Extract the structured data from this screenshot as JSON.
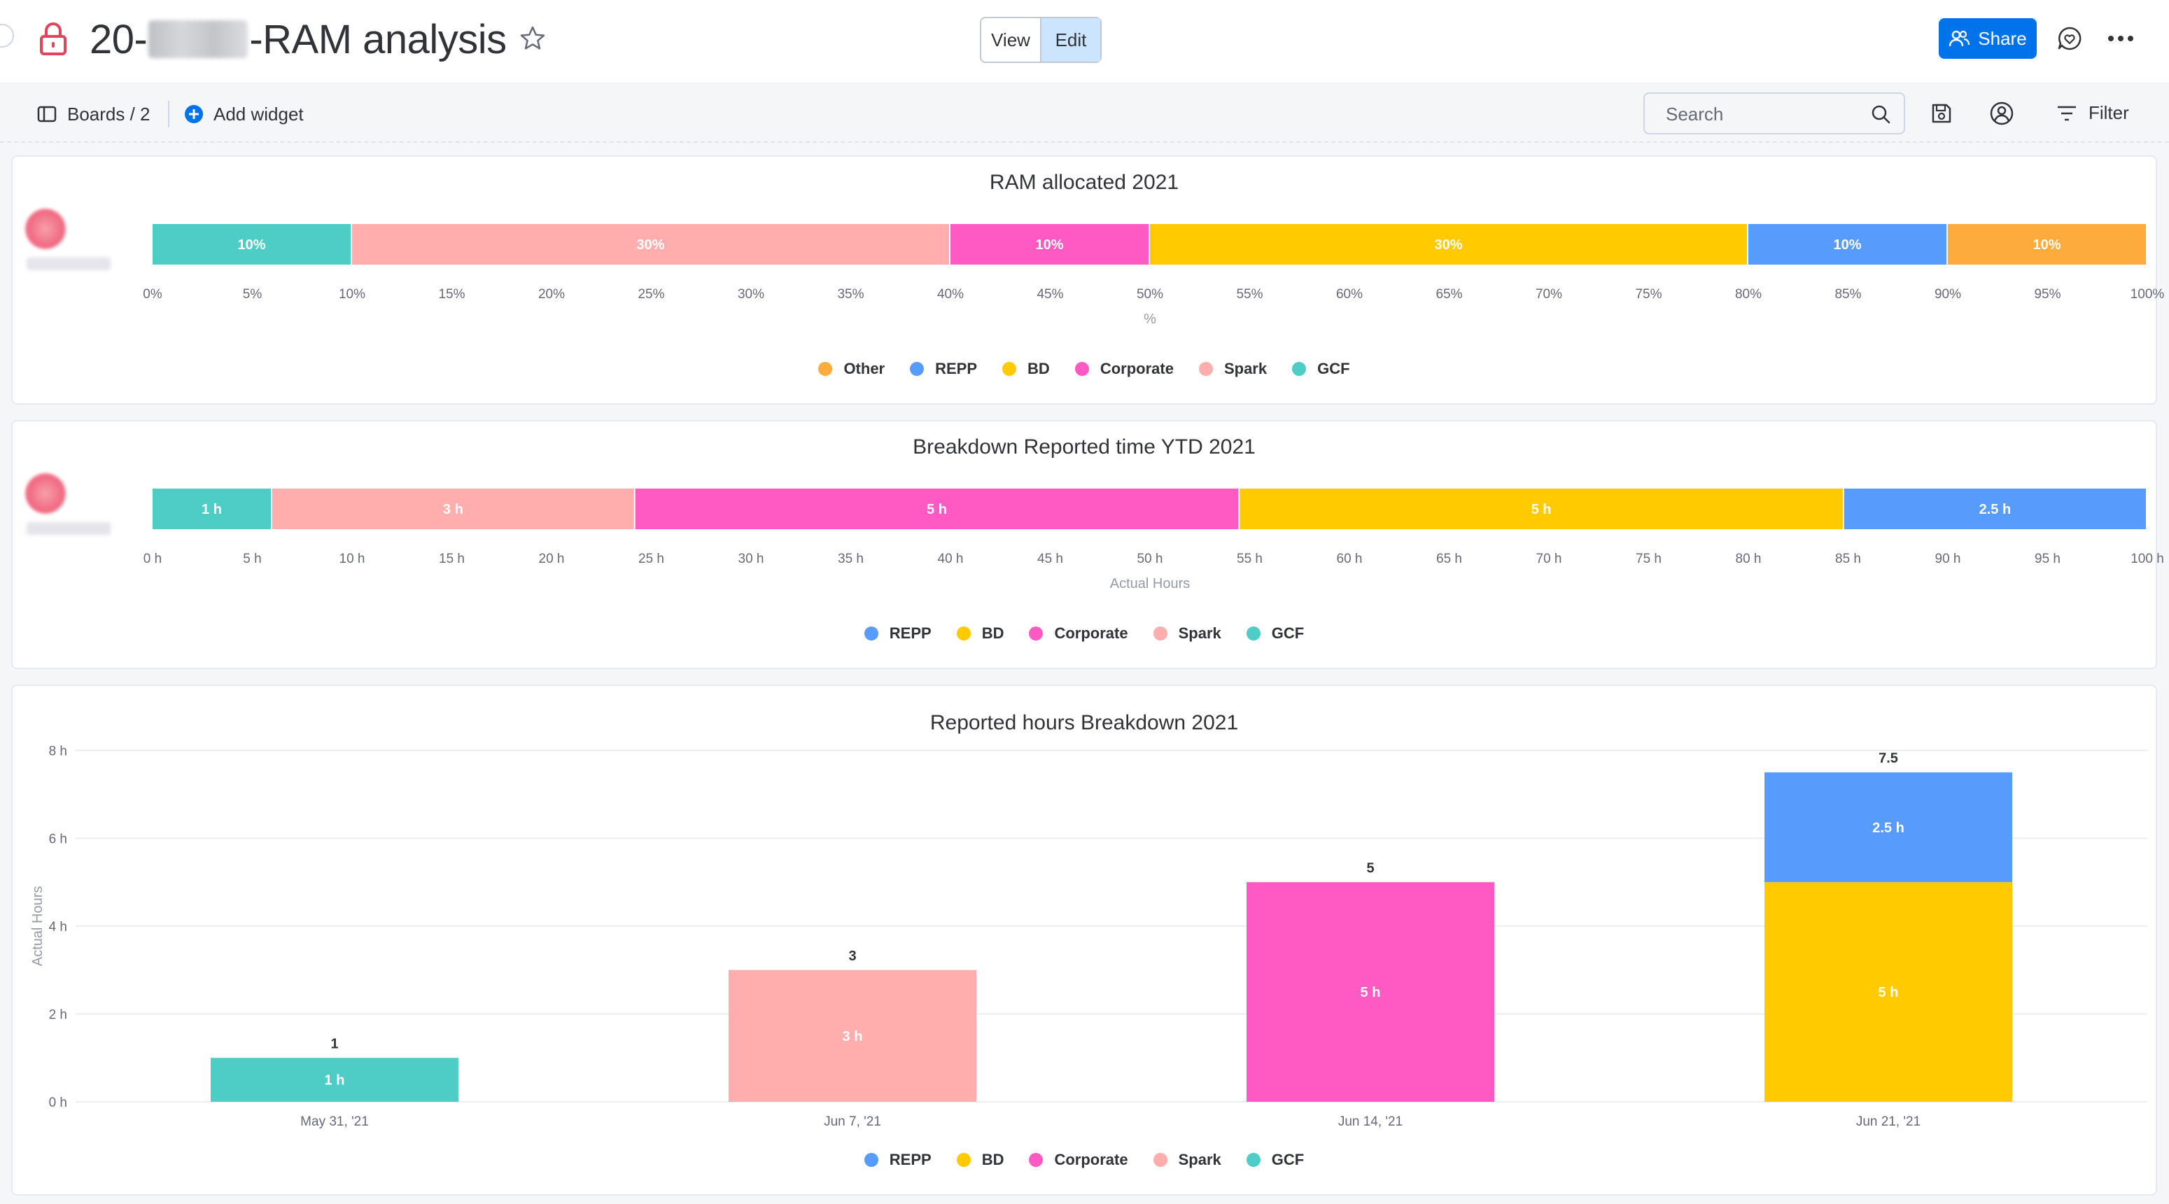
{
  "header": {
    "title_prefix": "20-",
    "title_suffix": "-RAM analysis",
    "view_label": "View",
    "edit_label": "Edit",
    "share_label": "Share"
  },
  "toolbar": {
    "boards_label": "Boards / 2",
    "add_widget_label": "Add widget",
    "search_placeholder": "Search",
    "filter_label": "Filter"
  },
  "colors": {
    "GCF": "#4eccc6",
    "Spark": "#ffadad",
    "Corporate": "#ff5ac4",
    "BD": "#ffcb00",
    "REPP": "#579bfc",
    "Other": "#fdab3d",
    "accent": "#0073ea",
    "lock": "#e2445c"
  },
  "widgets": {
    "ram": {
      "title": "RAM allocated 2021"
    },
    "ytd": {
      "title": "Breakdown Reported time YTD 2021"
    },
    "weekly": {
      "title": "Reported hours Breakdown 2021"
    }
  },
  "chart_data": [
    {
      "type": "bar",
      "orientation": "horizontal-stacked",
      "title": "RAM allocated 2021",
      "xlabel": "%",
      "xlim": [
        0,
        100
      ],
      "x_ticks": [
        "0%",
        "5%",
        "10%",
        "15%",
        "20%",
        "25%",
        "30%",
        "35%",
        "40%",
        "45%",
        "50%",
        "55%",
        "60%",
        "65%",
        "70%",
        "75%",
        "80%",
        "85%",
        "90%",
        "95%",
        "100%"
      ],
      "series": [
        {
          "name": "GCF",
          "values": [
            10
          ],
          "label": "10%"
        },
        {
          "name": "Spark",
          "values": [
            30
          ],
          "label": "30%"
        },
        {
          "name": "Corporate",
          "values": [
            10
          ],
          "label": "10%"
        },
        {
          "name": "BD",
          "values": [
            30
          ],
          "label": "30%"
        },
        {
          "name": "REPP",
          "values": [
            10
          ],
          "label": "10%"
        },
        {
          "name": "Other",
          "values": [
            10
          ],
          "label": "10%"
        }
      ],
      "legend": [
        "Other",
        "REPP",
        "BD",
        "Corporate",
        "Spark",
        "GCF"
      ],
      "legend_position": "bottom"
    },
    {
      "type": "bar",
      "orientation": "horizontal-stacked",
      "title": "Breakdown Reported time YTD 2021",
      "xlabel": "Actual Hours",
      "xlim": [
        0,
        100
      ],
      "x_ticks": [
        "0 h",
        "5 h",
        "10 h",
        "15 h",
        "20 h",
        "25 h",
        "30 h",
        "35 h",
        "40 h",
        "45 h",
        "50 h",
        "55 h",
        "60 h",
        "65 h",
        "70 h",
        "75 h",
        "80 h",
        "85 h",
        "90 h",
        "95 h",
        "100 h"
      ],
      "series": [
        {
          "name": "GCF",
          "values": [
            1
          ],
          "label": "1 h",
          "span": 6
        },
        {
          "name": "Spark",
          "values": [
            3
          ],
          "label": "3 h",
          "span": 18.2
        },
        {
          "name": "Corporate",
          "values": [
            5
          ],
          "label": "5 h",
          "span": 30.3
        },
        {
          "name": "BD",
          "values": [
            5
          ],
          "label": "5 h",
          "span": 30.3
        },
        {
          "name": "REPP",
          "values": [
            2.5
          ],
          "label": "2.5 h",
          "span": 15.2
        }
      ],
      "legend": [
        "REPP",
        "BD",
        "Corporate",
        "Spark",
        "GCF"
      ],
      "legend_position": "bottom"
    },
    {
      "type": "bar",
      "orientation": "vertical-stacked",
      "title": "Reported hours Breakdown 2021",
      "ylabel": "Actual Hours",
      "ylim": [
        0,
        8
      ],
      "y_ticks": [
        "0 h",
        "2 h",
        "4 h",
        "6 h",
        "8 h"
      ],
      "categories": [
        "May 31, '21",
        "Jun 7, '21",
        "Jun 14, '21",
        "Jun 21, '21"
      ],
      "totals": [
        "1",
        "3",
        "5",
        "7.5"
      ],
      "series": [
        {
          "name": "GCF",
          "values": [
            1,
            0,
            0,
            0
          ],
          "labels": [
            "1 h",
            "",
            "",
            ""
          ]
        },
        {
          "name": "Spark",
          "values": [
            0,
            3,
            0,
            0
          ],
          "labels": [
            "",
            "3 h",
            "",
            ""
          ]
        },
        {
          "name": "Corporate",
          "values": [
            0,
            0,
            5,
            0
          ],
          "labels": [
            "",
            "",
            "5 h",
            ""
          ]
        },
        {
          "name": "BD",
          "values": [
            0,
            0,
            0,
            5
          ],
          "labels": [
            "",
            "",
            "",
            "5 h"
          ]
        },
        {
          "name": "REPP",
          "values": [
            0,
            0,
            0,
            2.5
          ],
          "labels": [
            "",
            "",
            "",
            "2.5 h"
          ]
        }
      ],
      "legend": [
        "REPP",
        "BD",
        "Corporate",
        "Spark",
        "GCF"
      ],
      "legend_position": "bottom"
    }
  ]
}
